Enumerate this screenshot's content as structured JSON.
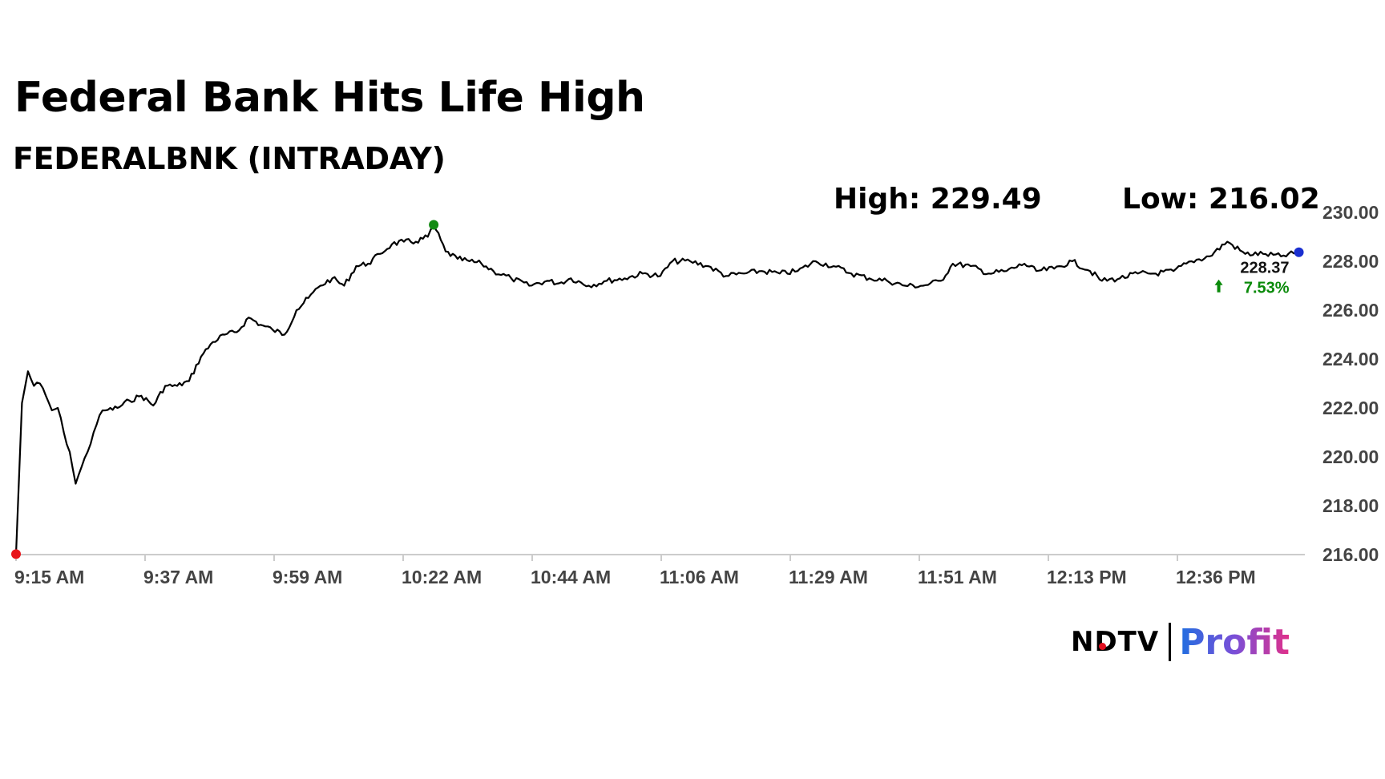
{
  "title": "Federal Bank Hits Life High",
  "subtitle": "FEDERALBNK (INTRADAY)",
  "stats": {
    "high_label": "High: 229.49",
    "low_label": "Low: 216.02"
  },
  "last": {
    "price": "228.37",
    "change": "7.53%",
    "change_icon": "arrow-up-icon"
  },
  "logo": {
    "brand": "NDTV",
    "product": "Profit"
  },
  "colors": {
    "line": "#000000",
    "low_marker": "#e8141a",
    "high_marker": "#138a13",
    "last_marker": "#1a2fd0",
    "change": "#0a8a0a",
    "axis": "#cccccc"
  },
  "chart_data": {
    "type": "line",
    "title": "Federal Bank Hits Life High",
    "subtitle": "FEDERALBNK (INTRADAY)",
    "xlabel": "",
    "ylabel": "",
    "ylim": [
      216,
      230
    ],
    "y_ticks": [
      "216.00",
      "218.00",
      "220.00",
      "222.00",
      "224.00",
      "226.00",
      "228.00",
      "230.00"
    ],
    "x_ticks": [
      "9:15 AM",
      "9:37 AM",
      "9:59 AM",
      "10:22 AM",
      "10:44 AM",
      "11:06 AM",
      "11:29 AM",
      "11:51 AM",
      "12:13 PM",
      "12:36 PM"
    ],
    "grid": false,
    "series": [
      {
        "points": [
          [
            "9:15",
            216.02
          ],
          [
            "9:16",
            222.2
          ],
          [
            "9:17",
            223.5
          ],
          [
            "9:18",
            222.9
          ],
          [
            "9:19",
            223.0
          ],
          [
            "9:20",
            222.5
          ],
          [
            "9:21",
            221.9
          ],
          [
            "9:22",
            222.0
          ],
          [
            "9:23",
            221.0
          ],
          [
            "9:24",
            220.2
          ],
          [
            "9:25",
            218.9
          ],
          [
            "9:26",
            219.6
          ],
          [
            "9:27",
            220.2
          ],
          [
            "9:28",
            221.0
          ],
          [
            "9:29",
            221.7
          ],
          [
            "9:30",
            221.9
          ],
          [
            "9:32",
            222.0
          ],
          [
            "9:34",
            222.3
          ],
          [
            "9:36",
            222.5
          ],
          [
            "9:38",
            222.1
          ],
          [
            "9:40",
            222.9
          ],
          [
            "9:42",
            222.9
          ],
          [
            "9:44",
            223.1
          ],
          [
            "9:46",
            224.1
          ],
          [
            "9:48",
            224.7
          ],
          [
            "9:50",
            225.0
          ],
          [
            "9:52",
            225.1
          ],
          [
            "9:54",
            225.7
          ],
          [
            "9:56",
            225.4
          ],
          [
            "9:58",
            225.2
          ],
          [
            "10:00",
            225.0
          ],
          [
            "10:02",
            226.0
          ],
          [
            "10:04",
            226.5
          ],
          [
            "10:06",
            227.0
          ],
          [
            "10:08",
            227.3
          ],
          [
            "10:10",
            227.0
          ],
          [
            "10:12",
            227.8
          ],
          [
            "10:14",
            227.9
          ],
          [
            "10:16",
            228.3
          ],
          [
            "10:18",
            228.7
          ],
          [
            "10:20",
            228.8
          ],
          [
            "10:22",
            228.8
          ],
          [
            "10:24",
            229.0
          ],
          [
            "10:25",
            229.49
          ],
          [
            "10:27",
            228.4
          ],
          [
            "10:29",
            228.1
          ],
          [
            "10:31",
            228.0
          ],
          [
            "10:33",
            227.9
          ],
          [
            "10:35",
            227.6
          ],
          [
            "10:38",
            227.3
          ],
          [
            "10:41",
            227.0
          ],
          [
            "10:44",
            227.2
          ],
          [
            "10:46",
            227.1
          ],
          [
            "10:48",
            227.3
          ],
          [
            "10:51",
            227.0
          ],
          [
            "10:54",
            227.2
          ],
          [
            "10:57",
            227.3
          ],
          [
            "11:00",
            227.5
          ],
          [
            "11:03",
            227.4
          ],
          [
            "11:05",
            228.0
          ],
          [
            "11:08",
            228.0
          ],
          [
            "11:11",
            227.8
          ],
          [
            "11:14",
            227.4
          ],
          [
            "11:17",
            227.5
          ],
          [
            "11:20",
            227.6
          ],
          [
            "11:23",
            227.5
          ],
          [
            "11:26",
            227.6
          ],
          [
            "11:29",
            228.0
          ],
          [
            "11:32",
            227.8
          ],
          [
            "11:35",
            227.5
          ],
          [
            "11:38",
            227.3
          ],
          [
            "11:41",
            227.2
          ],
          [
            "11:44",
            227.0
          ],
          [
            "11:47",
            227.0
          ],
          [
            "11:50",
            227.2
          ],
          [
            "11:52",
            227.9
          ],
          [
            "11:55",
            227.8
          ],
          [
            "11:58",
            227.5
          ],
          [
            "12:01",
            227.6
          ],
          [
            "12:04",
            227.9
          ],
          [
            "12:06",
            227.6
          ],
          [
            "12:09",
            227.7
          ],
          [
            "12:12",
            228.0
          ],
          [
            "12:15",
            227.6
          ],
          [
            "12:17",
            227.2
          ],
          [
            "12:20",
            227.3
          ],
          [
            "12:23",
            227.5
          ],
          [
            "12:26",
            227.5
          ],
          [
            "12:29",
            227.6
          ],
          [
            "12:32",
            228.0
          ],
          [
            "12:35",
            228.2
          ],
          [
            "12:38",
            228.8
          ],
          [
            "12:41",
            228.3
          ],
          [
            "12:44",
            228.3
          ],
          [
            "12:47",
            228.2
          ],
          [
            "12:50",
            228.37
          ]
        ]
      }
    ],
    "markers": {
      "low": {
        "time": "9:15",
        "value": 216.02
      },
      "high": {
        "time": "10:25",
        "value": 229.49
      },
      "last": {
        "time": "12:50",
        "value": 228.37
      }
    }
  }
}
